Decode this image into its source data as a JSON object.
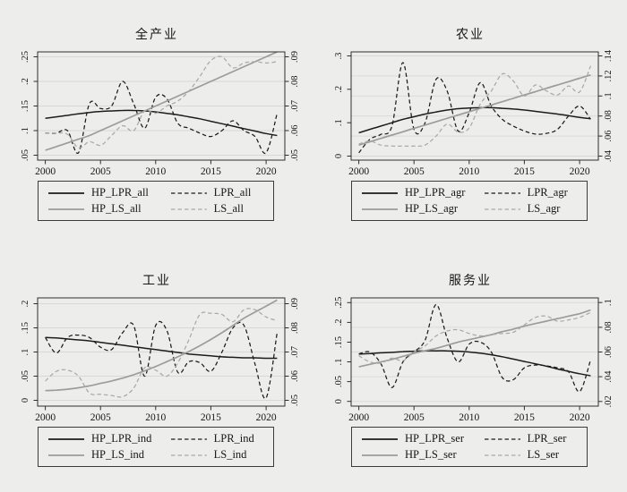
{
  "figure": {
    "background": "#ededec"
  },
  "colors": {
    "line_black": "#1c1c1c",
    "line_gray_solid": "#9c9c9c",
    "line_gray_dashed": "#a9a9a9",
    "grid": "#d8d8d8",
    "axis": "#2f2f2f",
    "text": "#161616"
  },
  "chart_data": [
    {
      "type": "line",
      "title": "全产业",
      "x": [
        2000,
        2001,
        2002,
        2003,
        2004,
        2005,
        2006,
        2007,
        2008,
        2009,
        2010,
        2011,
        2012,
        2013,
        2014,
        2015,
        2016,
        2017,
        2018,
        2019,
        2020,
        2021
      ],
      "x_ticks": [
        2000,
        2005,
        2010,
        2015,
        2020
      ],
      "x_domain": [
        1999.3,
        2021.7
      ],
      "left_axis": {
        "tick_labels": [
          ".05",
          ".1",
          ".15",
          ".2",
          ".25"
        ],
        "tick_values": [
          0.05,
          0.1,
          0.15,
          0.2,
          0.25
        ],
        "domain": [
          0.04,
          0.26
        ]
      },
      "right_axis": {
        "tick_labels": [
          ".05",
          ".06",
          ".07",
          ".08",
          ".09"
        ],
        "tick_values": [
          0.05,
          0.06,
          0.07,
          0.08,
          0.09
        ],
        "domain": [
          0.048,
          0.092
        ]
      },
      "series": [
        {
          "name": "HP_LPR_all",
          "axis": "left",
          "line": "solid",
          "color": "black",
          "values": [
            0.125,
            0.128,
            0.131,
            0.134,
            0.137,
            0.139,
            0.14,
            0.141,
            0.141,
            0.14,
            0.138,
            0.135,
            0.132,
            0.128,
            0.124,
            0.119,
            0.114,
            0.109,
            0.104,
            0.099,
            0.094,
            0.09
          ]
        },
        {
          "name": "LPR_all",
          "axis": "left",
          "line": "dashed",
          "color": "black",
          "values": [
            0.095,
            0.095,
            0.1,
            0.055,
            0.155,
            0.145,
            0.15,
            0.2,
            0.155,
            0.105,
            0.168,
            0.165,
            0.115,
            0.105,
            0.095,
            0.088,
            0.1,
            0.12,
            0.1,
            0.088,
            0.055,
            0.135
          ]
        },
        {
          "name": "HP_LS_all",
          "axis": "right",
          "line": "solid",
          "color": "gray",
          "values": [
            0.052,
            0.0535,
            0.055,
            0.0565,
            0.058,
            0.06,
            0.062,
            0.064,
            0.066,
            0.068,
            0.07,
            0.072,
            0.074,
            0.076,
            0.078,
            0.08,
            0.082,
            0.084,
            0.086,
            0.088,
            0.09,
            0.092
          ]
        },
        {
          "name": "LS_all",
          "axis": "right",
          "line": "dashed",
          "color": "gray",
          "values": [
            0.059,
            0.059,
            0.0585,
            0.053,
            0.0555,
            0.054,
            0.058,
            0.062,
            0.06,
            0.068,
            0.067,
            0.07,
            0.072,
            0.076,
            0.082,
            0.0885,
            0.09,
            0.0855,
            0.0875,
            0.088,
            0.0875,
            0.088
          ]
        }
      ]
    },
    {
      "type": "line",
      "title": "农业",
      "x": [
        2000,
        2001,
        2002,
        2003,
        2004,
        2005,
        2006,
        2007,
        2008,
        2009,
        2010,
        2011,
        2012,
        2013,
        2014,
        2015,
        2016,
        2017,
        2018,
        2019,
        2020,
        2021
      ],
      "x_ticks": [
        2000,
        2005,
        2010,
        2015,
        2020
      ],
      "x_domain": [
        1999.3,
        2021.7
      ],
      "left_axis": {
        "tick_labels": [
          "0",
          ".1",
          ".2",
          ".3"
        ],
        "tick_values": [
          0,
          0.1,
          0.2,
          0.3
        ],
        "domain": [
          -0.012,
          0.312
        ]
      },
      "right_axis": {
        "tick_labels": [
          ".04",
          ".06",
          ".08",
          ".1",
          ".12",
          ".14"
        ],
        "tick_values": [
          0.04,
          0.06,
          0.08,
          0.1,
          0.12,
          0.14
        ],
        "domain": [
          0.036,
          0.144
        ]
      },
      "series": [
        {
          "name": "HP_LPR_agr",
          "axis": "left",
          "line": "solid",
          "color": "black",
          "values": [
            0.07,
            0.08,
            0.09,
            0.1,
            0.11,
            0.118,
            0.126,
            0.132,
            0.138,
            0.142,
            0.144,
            0.145,
            0.145,
            0.143,
            0.141,
            0.138,
            0.134,
            0.13,
            0.126,
            0.121,
            0.116,
            0.112
          ]
        },
        {
          "name": "LPR_agr",
          "axis": "left",
          "line": "dashed",
          "color": "black",
          "values": [
            0.01,
            0.05,
            0.065,
            0.09,
            0.28,
            0.08,
            0.1,
            0.23,
            0.195,
            0.075,
            0.13,
            0.22,
            0.15,
            0.11,
            0.09,
            0.075,
            0.066,
            0.068,
            0.08,
            0.12,
            0.15,
            0.11
          ]
        },
        {
          "name": "HP_LS_agr",
          "axis": "right",
          "line": "solid",
          "color": "gray",
          "values": [
            0.051,
            0.0543,
            0.0577,
            0.061,
            0.0643,
            0.0677,
            0.071,
            0.0743,
            0.0777,
            0.081,
            0.0843,
            0.0877,
            0.091,
            0.0943,
            0.0977,
            0.101,
            0.1043,
            0.1077,
            0.111,
            0.1143,
            0.1177,
            0.121
          ]
        },
        {
          "name": "LS_agr",
          "axis": "right",
          "line": "dashed",
          "color": "gray",
          "values": [
            0.052,
            0.055,
            0.051,
            0.05,
            0.05,
            0.05,
            0.051,
            0.06,
            0.072,
            0.064,
            0.068,
            0.092,
            0.105,
            0.122,
            0.115,
            0.1,
            0.111,
            0.105,
            0.101,
            0.11,
            0.104,
            0.13
          ]
        }
      ]
    },
    {
      "type": "line",
      "title": "工业",
      "x": [
        2000,
        2001,
        2002,
        2003,
        2004,
        2005,
        2006,
        2007,
        2008,
        2009,
        2010,
        2011,
        2012,
        2013,
        2014,
        2015,
        2016,
        2017,
        2018,
        2019,
        2020,
        2021
      ],
      "x_ticks": [
        2000,
        2005,
        2010,
        2015,
        2020
      ],
      "x_domain": [
        1999.3,
        2021.7
      ],
      "left_axis": {
        "tick_labels": [
          "0",
          ".05",
          ".1",
          ".15",
          ".2"
        ],
        "tick_values": [
          0,
          0.05,
          0.1,
          0.15,
          0.2
        ],
        "domain": [
          -0.012,
          0.212
        ]
      },
      "right_axis": {
        "tick_labels": [
          ".05",
          ".06",
          ".07",
          ".08",
          ".09"
        ],
        "tick_values": [
          0.05,
          0.06,
          0.07,
          0.08,
          0.09
        ],
        "domain": [
          0.0476,
          0.0924
        ]
      },
      "series": [
        {
          "name": "HP_LPR_ind",
          "axis": "left",
          "line": "solid",
          "color": "black",
          "values": [
            0.13,
            0.129,
            0.127,
            0.125,
            0.123,
            0.12,
            0.117,
            0.114,
            0.111,
            0.108,
            0.105,
            0.102,
            0.099,
            0.096,
            0.094,
            0.092,
            0.09,
            0.089,
            0.088,
            0.088,
            0.087,
            0.087
          ]
        },
        {
          "name": "LPR_ind",
          "axis": "left",
          "line": "dashed",
          "color": "black",
          "values": [
            0.13,
            0.098,
            0.13,
            0.135,
            0.13,
            0.11,
            0.105,
            0.14,
            0.155,
            0.05,
            0.155,
            0.145,
            0.058,
            0.08,
            0.078,
            0.06,
            0.1,
            0.15,
            0.155,
            0.075,
            0.005,
            0.14
          ]
        },
        {
          "name": "HP_LS_ind",
          "axis": "right",
          "line": "solid",
          "color": "gray",
          "values": [
            0.054,
            0.0542,
            0.0546,
            0.0552,
            0.056,
            0.057,
            0.058,
            0.0592,
            0.0606,
            0.0622,
            0.064,
            0.066,
            0.068,
            0.0702,
            0.0726,
            0.0752,
            0.078,
            0.081,
            0.084,
            0.0865,
            0.089,
            0.0915
          ]
        },
        {
          "name": "LS_ind",
          "axis": "right",
          "line": "dashed",
          "color": "gray",
          "values": [
            0.058,
            0.062,
            0.0625,
            0.06,
            0.053,
            0.0525,
            0.052,
            0.0515,
            0.055,
            0.0635,
            0.0625,
            0.06,
            0.0655,
            0.075,
            0.0855,
            0.086,
            0.0855,
            0.0825,
            0.0875,
            0.0875,
            0.0845,
            0.083
          ]
        }
      ]
    },
    {
      "type": "line",
      "title": "服务业",
      "x": [
        2000,
        2001,
        2002,
        2003,
        2004,
        2005,
        2006,
        2007,
        2008,
        2009,
        2010,
        2011,
        2012,
        2013,
        2014,
        2015,
        2016,
        2017,
        2018,
        2019,
        2020,
        2021
      ],
      "x_ticks": [
        2000,
        2005,
        2010,
        2015,
        2020
      ],
      "x_domain": [
        1999.3,
        2021.7
      ],
      "left_axis": {
        "tick_labels": [
          "0",
          ".05",
          ".1",
          ".15",
          ".2",
          ".25"
        ],
        "tick_values": [
          0,
          0.05,
          0.1,
          0.15,
          0.2,
          0.25
        ],
        "domain": [
          -0.012,
          0.262
        ]
      },
      "right_axis": {
        "tick_labels": [
          ".02",
          ".04",
          ".06",
          ".08",
          ".1"
        ],
        "tick_values": [
          0.02,
          0.04,
          0.06,
          0.08,
          0.1
        ],
        "domain": [
          0.0162,
          0.1038
        ]
      },
      "series": [
        {
          "name": "HP_LPR_ser",
          "axis": "left",
          "line": "solid",
          "color": "black",
          "values": [
            0.12,
            0.121,
            0.123,
            0.124,
            0.126,
            0.127,
            0.128,
            0.128,
            0.128,
            0.127,
            0.125,
            0.122,
            0.118,
            0.113,
            0.107,
            0.101,
            0.095,
            0.089,
            0.082,
            0.076,
            0.07,
            0.065
          ]
        },
        {
          "name": "LPR_ser",
          "axis": "left",
          "line": "dashed",
          "color": "black",
          "values": [
            0.12,
            0.125,
            0.095,
            0.035,
            0.1,
            0.125,
            0.155,
            0.245,
            0.16,
            0.1,
            0.145,
            0.15,
            0.125,
            0.06,
            0.055,
            0.085,
            0.092,
            0.09,
            0.085,
            0.075,
            0.025,
            0.105
          ]
        },
        {
          "name": "HP_LS_ser",
          "axis": "right",
          "line": "solid",
          "color": "gray",
          "values": [
            0.048,
            0.05,
            0.052,
            0.054,
            0.0565,
            0.059,
            0.061,
            0.063,
            0.0655,
            0.068,
            0.07,
            0.072,
            0.074,
            0.0765,
            0.0785,
            0.081,
            0.083,
            0.085,
            0.087,
            0.089,
            0.091,
            0.094
          ]
        },
        {
          "name": "LS_ser",
          "axis": "right",
          "line": "dashed",
          "color": "gray",
          "values": [
            0.057,
            0.052,
            0.051,
            0.055,
            0.053,
            0.06,
            0.065,
            0.073,
            0.077,
            0.078,
            0.075,
            0.073,
            0.074,
            0.075,
            0.076,
            0.082,
            0.088,
            0.089,
            0.085,
            0.086,
            0.088,
            0.092
          ]
        }
      ]
    }
  ]
}
